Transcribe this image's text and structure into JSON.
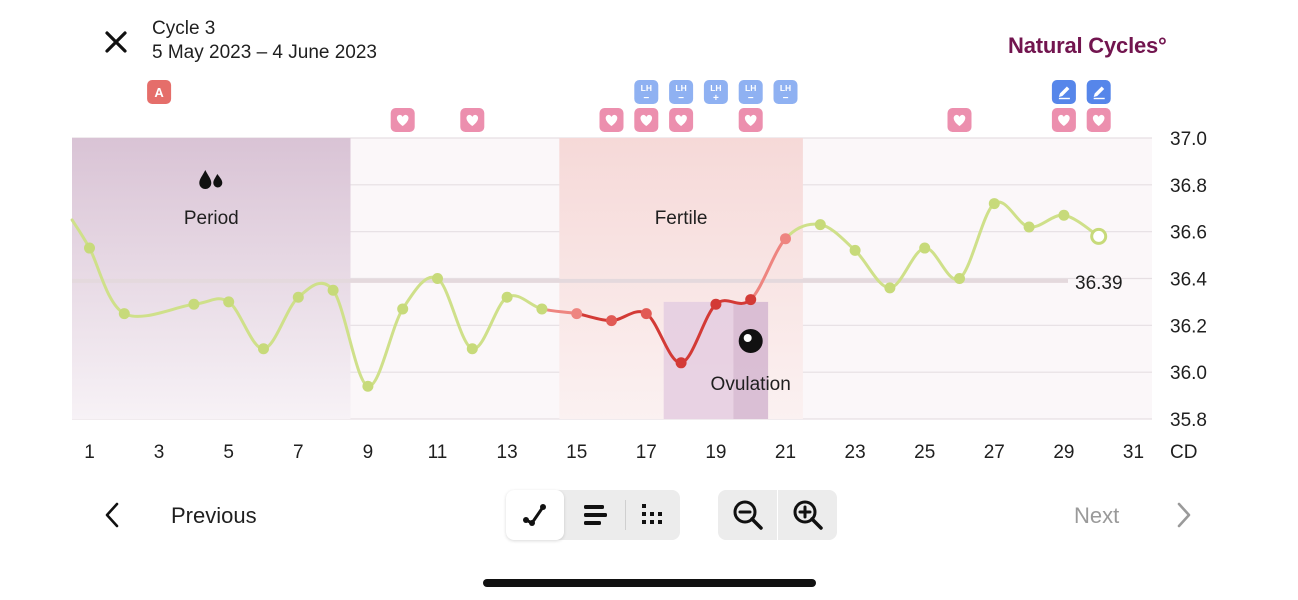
{
  "header": {
    "cycle_title": "Cycle 3",
    "cycle_dates": "5 May 2023 – 4 June 2023",
    "brand": "Natural Cycles°",
    "close_icon": "close-icon"
  },
  "chart_data": {
    "type": "line",
    "x_unit_label": "CD",
    "x_ticks": [
      1,
      3,
      5,
      7,
      9,
      11,
      13,
      15,
      17,
      19,
      21,
      23,
      25,
      27,
      29,
      31
    ],
    "y_ticks": [
      "37.0",
      "36.8",
      "36.6",
      "36.4",
      "36.2",
      "36.0",
      "35.8"
    ],
    "ylim": [
      35.8,
      37.0
    ],
    "xlim": [
      1,
      31
    ],
    "cover_line": {
      "value": 36.39,
      "label": "36.39"
    },
    "regions": [
      {
        "name": "period",
        "label": "Period",
        "from": 0.5,
        "to": 8.5,
        "icon": "drops-icon"
      },
      {
        "name": "fertile",
        "label": "Fertile",
        "from": 14.5,
        "to": 21.5
      },
      {
        "name": "ovulation",
        "label": "Ovulation",
        "from": 17.5,
        "to": 20.5,
        "icon": "ovulation-icon"
      }
    ],
    "series": [
      {
        "values": [
          {
            "cd": 0.5,
            "t": 36.65,
            "zone": "green"
          },
          {
            "cd": 1,
            "t": 36.53,
            "zone": "green"
          },
          {
            "cd": 2,
            "t": 36.25,
            "zone": "green"
          },
          {
            "cd": 4,
            "t": 36.29,
            "zone": "green"
          },
          {
            "cd": 5,
            "t": 36.3,
            "zone": "green"
          },
          {
            "cd": 6,
            "t": 36.1,
            "zone": "green"
          },
          {
            "cd": 7,
            "t": 36.32,
            "zone": "green"
          },
          {
            "cd": 8,
            "t": 36.35,
            "zone": "green"
          },
          {
            "cd": 9,
            "t": 35.94,
            "zone": "green"
          },
          {
            "cd": 10,
            "t": 36.27,
            "zone": "green"
          },
          {
            "cd": 11,
            "t": 36.4,
            "zone": "green"
          },
          {
            "cd": 12,
            "t": 36.1,
            "zone": "green"
          },
          {
            "cd": 13,
            "t": 36.32,
            "zone": "green"
          },
          {
            "cd": 14,
            "t": 36.27,
            "zone": "green"
          },
          {
            "cd": 15,
            "t": 36.25,
            "zone": "red"
          },
          {
            "cd": 16,
            "t": 36.22,
            "zone": "red"
          },
          {
            "cd": 17,
            "t": 36.25,
            "zone": "red"
          },
          {
            "cd": 18,
            "t": 36.04,
            "zone": "red"
          },
          {
            "cd": 19,
            "t": 36.29,
            "zone": "red"
          },
          {
            "cd": 20,
            "t": 36.31,
            "zone": "red"
          },
          {
            "cd": 21,
            "t": 36.57,
            "zone": "red"
          },
          {
            "cd": 22,
            "t": 36.63,
            "zone": "green"
          },
          {
            "cd": 23,
            "t": 36.52,
            "zone": "green"
          },
          {
            "cd": 24,
            "t": 36.36,
            "zone": "green"
          },
          {
            "cd": 25,
            "t": 36.53,
            "zone": "green"
          },
          {
            "cd": 26,
            "t": 36.4,
            "zone": "green"
          },
          {
            "cd": 27,
            "t": 36.72,
            "zone": "green"
          },
          {
            "cd": 28,
            "t": 36.62,
            "zone": "green"
          },
          {
            "cd": 29,
            "t": 36.67,
            "zone": "green"
          },
          {
            "cd": 30,
            "t": 36.58,
            "zone": "green",
            "hollow": true
          }
        ]
      }
    ],
    "markers": {
      "spotting": [
        {
          "cd": 3,
          "label": "A"
        }
      ],
      "sex": [
        10,
        12,
        16,
        17,
        18,
        20,
        26,
        29,
        30
      ],
      "lh_tests": [
        {
          "cd": 17,
          "label": "LH",
          "sign": "−"
        },
        {
          "cd": 18,
          "label": "LH",
          "sign": "−"
        },
        {
          "cd": 19,
          "label": "LH",
          "sign": "+"
        },
        {
          "cd": 20,
          "label": "LH",
          "sign": "−"
        },
        {
          "cd": 21,
          "label": "LH",
          "sign": "−"
        }
      ],
      "notes": [
        29,
        30
      ]
    },
    "grid": true,
    "colors": {
      "green_line": "#cfe08a",
      "green_dot": "#c7da7a",
      "red_dark": "#d33a36",
      "red_light": "#ee8580",
      "period_fill": "#dcc7d7",
      "fertile_fill": "#f7dedd",
      "ovulation_fill": "#d9c0d6",
      "heart_bg": "#ec8fae",
      "lh_bg": "#8fb1f2",
      "note_bg": "#5686ea",
      "spotting_bg": "#e56e6a"
    }
  },
  "nav": {
    "previous_label": "Previous",
    "next_label": "Next"
  },
  "toolbar": {
    "views": [
      {
        "name": "graph-view",
        "icon": "graph-icon",
        "active": true
      },
      {
        "name": "list-view",
        "icon": "list-icon",
        "active": false
      },
      {
        "name": "dots-view",
        "icon": "dots-grid-icon",
        "active": false
      }
    ],
    "zoom": [
      {
        "name": "zoom-out",
        "icon": "zoom-out-icon"
      },
      {
        "name": "zoom-in",
        "icon": "zoom-in-icon"
      }
    ]
  }
}
